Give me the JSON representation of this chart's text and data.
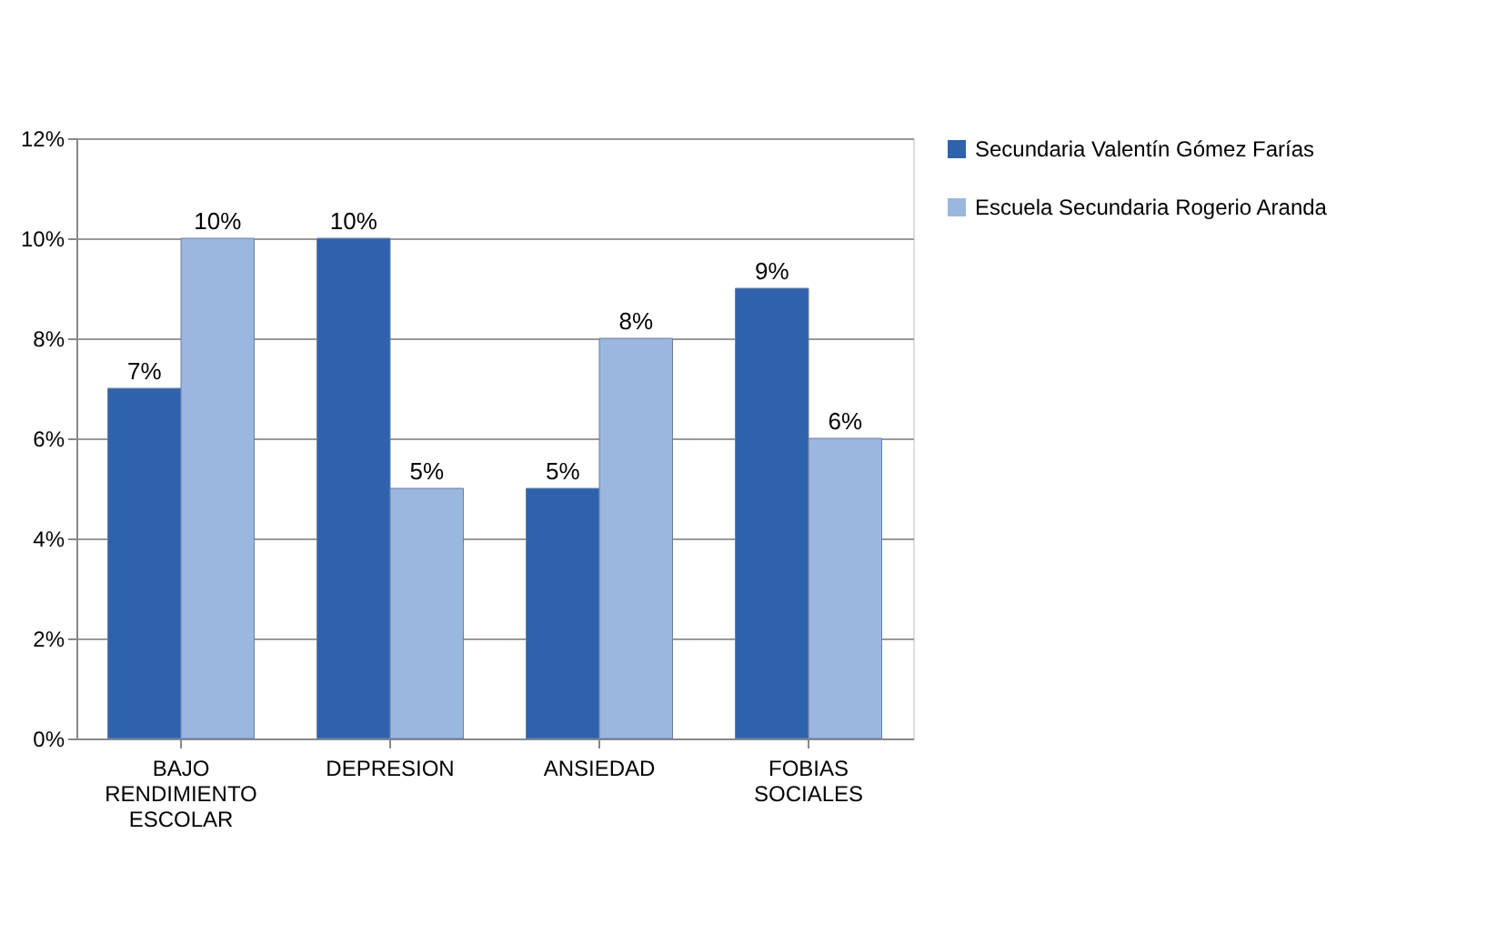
{
  "chart_data": {
    "type": "bar",
    "categories": [
      "BAJO RENDIMIENTO ESCOLAR",
      "DEPRESION",
      "ANSIEDAD",
      "FOBIAS SOCIALES"
    ],
    "series": [
      {
        "name": "Secundaria Valentín Gómez Farías",
        "color": "#2e62ad",
        "values": [
          7,
          10,
          5,
          9
        ],
        "value_labels": [
          "7%",
          "10%",
          "5%",
          "9%"
        ]
      },
      {
        "name": "Escuela Secundaria Rogerio Aranda",
        "color": "#9bb7e0",
        "values": [
          10,
          5,
          8,
          6
        ],
        "value_labels": [
          "10%",
          "5%",
          "8%",
          "6%"
        ]
      }
    ],
    "ylim": [
      0,
      12
    ],
    "yticks": [
      {
        "value": 0,
        "label": "0%"
      },
      {
        "value": 2,
        "label": "2%"
      },
      {
        "value": 4,
        "label": "4%"
      },
      {
        "value": 6,
        "label": "6%"
      },
      {
        "value": 8,
        "label": "8%"
      },
      {
        "value": 10,
        "label": "10%"
      },
      {
        "value": 12,
        "label": "12%"
      }
    ],
    "grid": "y",
    "legend": "right"
  }
}
